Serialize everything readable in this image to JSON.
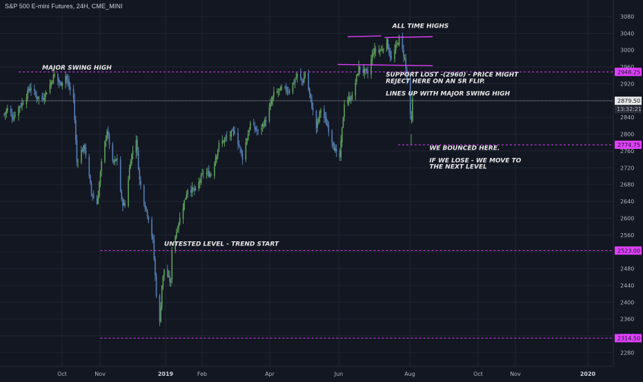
{
  "header": {
    "symbol_title": "S&P 500 E-mini Futures, 24H, CME_MINI"
  },
  "colors": {
    "background": "#131722",
    "grid": "#1f2433",
    "axis_text": "#b2b5be",
    "candle_up": "#5fa35b",
    "candle_down": "#5680b8",
    "level_line": "#e040fb",
    "level_badge": "#e040fb",
    "price_line": "#9598a1",
    "annotation_text": "#e6e6e6"
  },
  "chart_data": {
    "type": "candlestick",
    "instrument": "S&P 500 E-mini Futures",
    "timeframe": "24H",
    "exchange": "CME_MINI",
    "ylim": [
      2240,
      3120
    ],
    "y_ticks": [
      3080,
      3040,
      3000,
      2960,
      2920,
      2880,
      2840,
      2800,
      2760,
      2720,
      2680,
      2640,
      2600,
      2560,
      2520,
      2480,
      2440,
      2400,
      2360,
      2320,
      2280
    ],
    "x_ticks": [
      "Oct",
      "Nov",
      "2019",
      "Feb",
      "Apr",
      "Jun",
      "Aug",
      "Oct",
      "Nov",
      "2020"
    ],
    "current_price": {
      "value": "2879.50",
      "countdown": "13:32:21"
    },
    "levels": [
      {
        "value": 2948.25,
        "label": "2948.25",
        "from": "2018-08-20"
      },
      {
        "value": 2774.75,
        "label": "2774.75",
        "from": "2019-07-25"
      },
      {
        "value": 2523.0,
        "label": "2523.00",
        "from": "2018-11-01"
      },
      {
        "value": 2314.5,
        "label": "2314.50",
        "from": "2018-11-01"
      }
    ],
    "trendlines": [
      {
        "from": [
          "2019-06-10",
          3032
        ],
        "to": [
          "2019-07-10",
          3034
        ]
      },
      {
        "from": [
          "2019-07-13",
          3030
        ],
        "to": [
          "2019-08-25",
          3032
        ]
      },
      {
        "from": [
          "2019-06-01",
          2966
        ],
        "to": [
          "2019-08-25",
          2963
        ]
      }
    ],
    "annotations": [
      {
        "text": "MAJOR SWING HIGH",
        "date": "2018-09-10",
        "price": 2954
      },
      {
        "text": "ALL TIME HIGHS",
        "date": "2019-07-20",
        "price": 3053
      },
      {
        "text": "SUPPORT LOST -(2960) - PRICE MIGHT",
        "date": "2019-07-14",
        "price": 2937
      },
      {
        "text": "REJECT HERE ON AN SR FLIP.",
        "date": "2019-07-14",
        "price": 2922
      },
      {
        "text": "LINES UP WITH MAJOR SWING HIGH",
        "date": "2019-07-14",
        "price": 2892
      },
      {
        "text": "WE BOUNCED HERE.",
        "date": "2019-08-22",
        "price": 2762
      },
      {
        "text": "IF WE LOSE - WE MOVE TO",
        "date": "2019-08-22",
        "price": 2733
      },
      {
        "text": "THE NEXT LEVEL",
        "date": "2019-08-22",
        "price": 2718
      },
      {
        "text": "UNTESTED LEVEL - TREND START",
        "date": "2018-12-28",
        "price": 2534
      }
    ],
    "price_path": [
      [
        "2018-08-07",
        2847
      ],
      [
        "2018-08-10",
        2860
      ],
      [
        "2018-08-15",
        2840
      ],
      [
        "2018-08-20",
        2864
      ],
      [
        "2018-08-25",
        2880
      ],
      [
        "2018-08-30",
        2912
      ],
      [
        "2018-09-05",
        2889
      ],
      [
        "2018-09-10",
        2884
      ],
      [
        "2018-09-15",
        2906
      ],
      [
        "2018-09-21",
        2942
      ],
      [
        "2018-09-26",
        2918
      ],
      [
        "2018-10-01",
        2940
      ],
      [
        "2018-10-04",
        2912
      ],
      [
        "2018-10-08",
        2885
      ],
      [
        "2018-10-11",
        2734
      ],
      [
        "2018-10-15",
        2760
      ],
      [
        "2018-10-18",
        2770
      ],
      [
        "2018-10-24",
        2660
      ],
      [
        "2018-10-29",
        2635
      ],
      [
        "2018-11-02",
        2730
      ],
      [
        "2018-11-07",
        2810
      ],
      [
        "2018-11-12",
        2730
      ],
      [
        "2018-11-16",
        2740
      ],
      [
        "2018-11-20",
        2640
      ],
      [
        "2018-11-23",
        2630
      ],
      [
        "2018-11-28",
        2740
      ],
      [
        "2018-12-03",
        2790
      ],
      [
        "2018-12-06",
        2690
      ],
      [
        "2018-12-10",
        2640
      ],
      [
        "2018-12-14",
        2600
      ],
      [
        "2018-12-18",
        2545
      ],
      [
        "2018-12-21",
        2420
      ],
      [
        "2018-12-24",
        2350
      ],
      [
        "2018-12-26",
        2440
      ],
      [
        "2018-12-28",
        2478
      ],
      [
        "2019-01-03",
        2446
      ],
      [
        "2019-01-04",
        2528
      ],
      [
        "2019-01-10",
        2590
      ],
      [
        "2019-01-18",
        2670
      ],
      [
        "2019-01-25",
        2665
      ],
      [
        "2019-02-01",
        2708
      ],
      [
        "2019-02-08",
        2705
      ],
      [
        "2019-02-15",
        2775
      ],
      [
        "2019-02-22",
        2792
      ],
      [
        "2019-03-01",
        2807
      ],
      [
        "2019-03-08",
        2745
      ],
      [
        "2019-03-15",
        2825
      ],
      [
        "2019-03-22",
        2805
      ],
      [
        "2019-03-29",
        2834
      ],
      [
        "2019-04-05",
        2895
      ],
      [
        "2019-04-12",
        2907
      ],
      [
        "2019-04-19",
        2905
      ],
      [
        "2019-04-26",
        2940
      ],
      [
        "2019-05-01",
        2925
      ],
      [
        "2019-05-03",
        2946
      ],
      [
        "2019-05-08",
        2880
      ],
      [
        "2019-05-13",
        2815
      ],
      [
        "2019-05-17",
        2860
      ],
      [
        "2019-05-23",
        2820
      ],
      [
        "2019-05-31",
        2752
      ],
      [
        "2019-06-03",
        2745
      ],
      [
        "2019-06-07",
        2875
      ],
      [
        "2019-06-14",
        2890
      ],
      [
        "2019-06-20",
        2958
      ],
      [
        "2019-06-28",
        2943
      ],
      [
        "2019-07-03",
        2998
      ],
      [
        "2019-07-10",
        3000
      ],
      [
        "2019-07-15",
        3020
      ],
      [
        "2019-07-19",
        2977
      ],
      [
        "2019-07-26",
        3028
      ],
      [
        "2019-07-31",
        2980
      ],
      [
        "2019-08-02",
        2930
      ],
      [
        "2019-08-05",
        2840
      ],
      [
        "2019-08-06",
        2828
      ],
      [
        "2019-08-07",
        2880
      ]
    ]
  }
}
